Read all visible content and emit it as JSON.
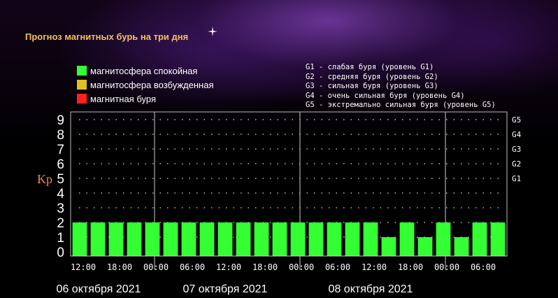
{
  "page": {
    "title": "Прогноз магнитных бурь на три дня"
  },
  "legend": {
    "items": [
      {
        "label": "магнитосфера спокойная",
        "color": "#33ff33"
      },
      {
        "label": "магнитосфера возбужденная",
        "color": "#e0c020"
      },
      {
        "label": "магнитная буря",
        "color": "#ff2020"
      }
    ]
  },
  "storm_levels": [
    "G1 - слабая буря (уровень G1)",
    "G2 - средняя буря (уровень G2)",
    "G3 - сильная буря (уровень G3)",
    "G4 - очень сильная буря (уровень G4)",
    "G5 - экстремально сильная буря (уровень G5)"
  ],
  "chart_data": {
    "type": "bar",
    "ylabel": "Kp",
    "ylim": [
      0,
      9
    ],
    "y_ticks": [
      "0",
      "1",
      "2",
      "3",
      "4",
      "5",
      "6",
      "7",
      "8",
      "9"
    ],
    "right_ticks": [
      {
        "label": "G1",
        "y": 5
      },
      {
        "label": "G2",
        "y": 6
      },
      {
        "label": "G3",
        "y": 7
      },
      {
        "label": "G4",
        "y": 8
      },
      {
        "label": "G5",
        "y": 9
      }
    ],
    "x_ticks": [
      "12:00",
      "18:00",
      "00:00",
      "06:00",
      "12:00",
      "18:00",
      "00:00",
      "06:00",
      "12:00",
      "18:00",
      "00:00",
      "06:00"
    ],
    "days": [
      "06 октября 2021",
      "07 октября 2021",
      "08 октября 2021"
    ],
    "values": [
      2,
      2,
      2,
      2,
      2,
      2,
      2,
      2,
      2,
      2,
      2,
      2,
      2,
      2,
      2,
      2,
      2,
      1,
      2,
      1,
      2,
      1,
      2,
      2
    ],
    "bar_color": "#33ff33",
    "grid": "dotted"
  }
}
